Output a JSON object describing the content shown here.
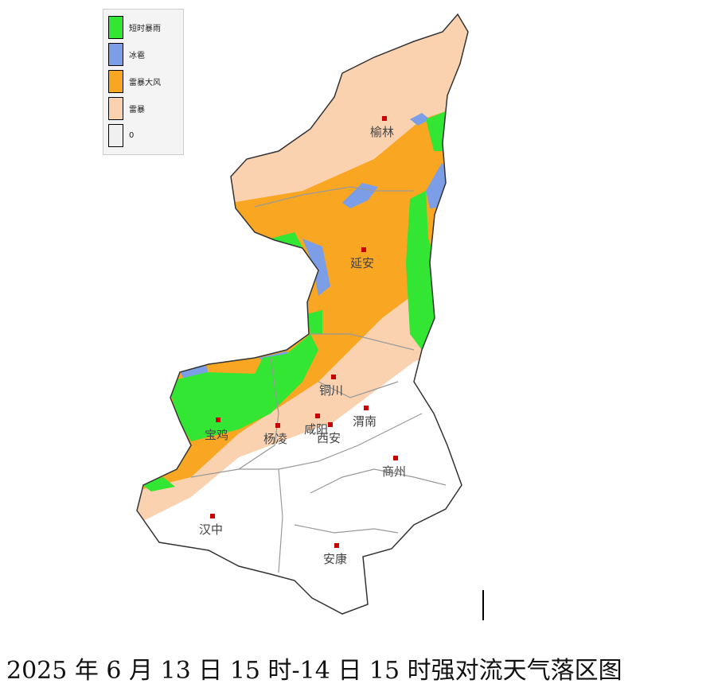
{
  "legend": [
    {
      "label": "短时暴雨",
      "color": "#33e633"
    },
    {
      "label": "冰雹",
      "color": "#7b9ee6"
    },
    {
      "label": "雷暴大风",
      "color": "#f9a623"
    },
    {
      "label": "雷暴",
      "color": "#fbd2b0"
    },
    {
      "label": "0",
      "color": "#f0f0f0"
    }
  ],
  "cities": [
    {
      "name": "榆林"
    },
    {
      "name": "延安"
    },
    {
      "name": "铜川"
    },
    {
      "name": "宝鸡"
    },
    {
      "name": "杨凌"
    },
    {
      "name": "咸阳"
    },
    {
      "name": "西安"
    },
    {
      "name": "渭南"
    },
    {
      "name": "商州"
    },
    {
      "name": "汉中"
    },
    {
      "name": "安康"
    }
  ],
  "title": "2025 年 6 月 13 日 15 时-14 日 15 时强对流天气落区图"
}
